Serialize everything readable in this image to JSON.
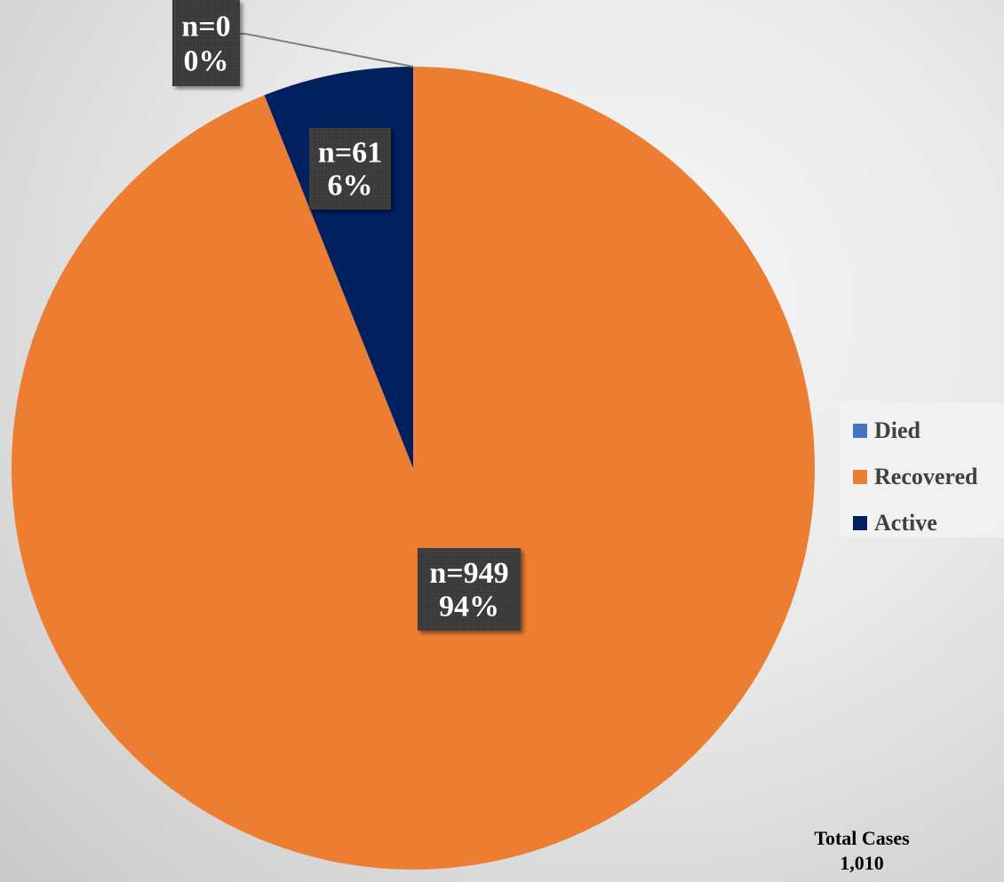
{
  "chart_data": {
    "type": "pie",
    "title": "",
    "slices": [
      {
        "name": "Died",
        "value": 0,
        "n_label": "n=0",
        "pct_label": "0%",
        "color": "#4472C4"
      },
      {
        "name": "Recovered",
        "value": 949,
        "n_label": "n=949",
        "pct_label": "94%",
        "color": "#ED7D31"
      },
      {
        "name": "Active",
        "value": 61,
        "n_label": "n=61",
        "pct_label": "6%",
        "color": "#002060"
      }
    ],
    "start_angle": "12 o'clock, clockwise",
    "legend_position": "right",
    "label_box_color": "#3a3a3a",
    "annotation": {
      "label": "Total Cases",
      "value": "1,010"
    }
  }
}
